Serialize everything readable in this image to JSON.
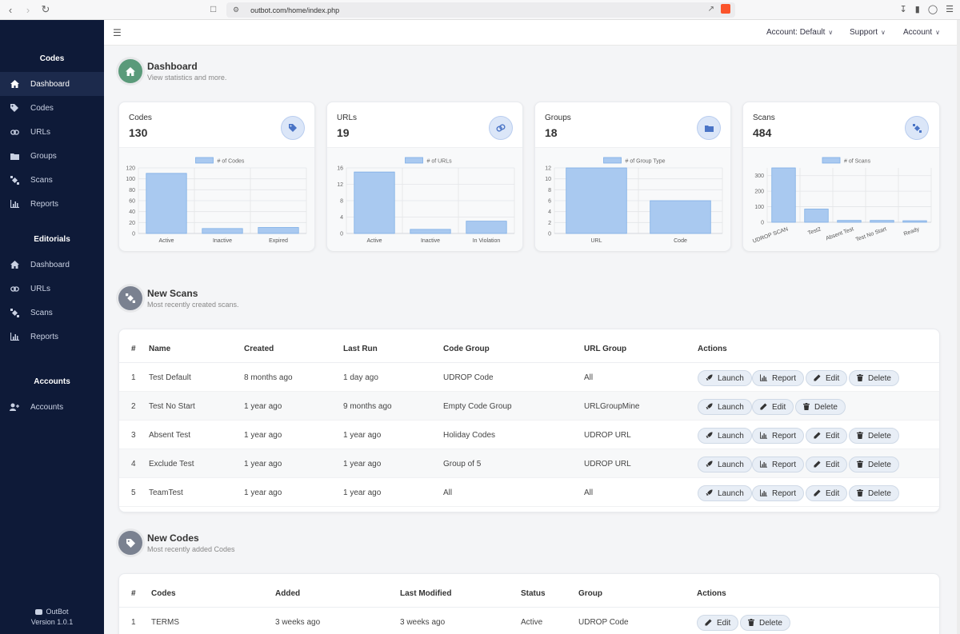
{
  "browser": {
    "url": "outbot.com/home/index.php"
  },
  "sidebar": {
    "sections": [
      {
        "title": "Codes",
        "items": [
          {
            "label": "Dashboard",
            "icon": "home-icon",
            "active": true
          },
          {
            "label": "Codes",
            "icon": "tag-icon"
          },
          {
            "label": "URLs",
            "icon": "link-icon"
          },
          {
            "label": "Groups",
            "icon": "folder-icon"
          },
          {
            "label": "Scans",
            "icon": "satellite-icon"
          },
          {
            "label": "Reports",
            "icon": "chart-icon"
          }
        ]
      },
      {
        "title": "Editorials",
        "items": [
          {
            "label": "Dashboard",
            "icon": "home-icon"
          },
          {
            "label": "URLs",
            "icon": "link-icon"
          },
          {
            "label": "Scans",
            "icon": "satellite-icon"
          },
          {
            "label": "Reports",
            "icon": "chart-icon"
          }
        ]
      },
      {
        "title": "Accounts",
        "items": [
          {
            "label": "Accounts",
            "icon": "user-plus-icon"
          }
        ]
      }
    ],
    "footer": {
      "brand": "OutBot",
      "version": "Version 1.0.1"
    }
  },
  "topbar": {
    "account_default": "Account: Default",
    "support": "Support",
    "account": "Account"
  },
  "dashboard": {
    "title": "Dashboard",
    "subtitle": "View statistics and more."
  },
  "cards": [
    {
      "name": "Codes",
      "count": "130",
      "icon": "tag-icon"
    },
    {
      "name": "URLs",
      "count": "19",
      "icon": "link-icon"
    },
    {
      "name": "Groups",
      "count": "18",
      "icon": "folder-icon"
    },
    {
      "name": "Scans",
      "count": "484",
      "icon": "satellite-icon"
    }
  ],
  "chart_data": [
    {
      "type": "bar",
      "legend": "# of Codes",
      "categories": [
        "Active",
        "Inactive",
        "Expired"
      ],
      "values": [
        110,
        9,
        11
      ],
      "ylim": [
        0,
        120
      ],
      "yticks": [
        0,
        20,
        40,
        60,
        80,
        100,
        120
      ]
    },
    {
      "type": "bar",
      "legend": "# of URLs",
      "categories": [
        "Active",
        "Inactive",
        "In Violation"
      ],
      "values": [
        15,
        1,
        3
      ],
      "ylim": [
        0,
        16
      ],
      "yticks": [
        0,
        4,
        8,
        12,
        16
      ]
    },
    {
      "type": "bar",
      "legend": "# of Group Type",
      "categories": [
        "URL",
        "Code"
      ],
      "values": [
        12,
        6
      ],
      "ylim": [
        0,
        12
      ],
      "yticks": [
        0,
        2,
        4,
        6,
        8,
        10,
        12
      ]
    },
    {
      "type": "bar",
      "legend": "# of Scans",
      "categories": [
        "UDROP SCAN",
        "Test2",
        "Absent Test",
        "Test No Start",
        "Ready"
      ],
      "values": [
        350,
        85,
        12,
        12,
        10
      ],
      "ylim": [
        0,
        350
      ],
      "yticks": [
        0,
        100,
        200,
        300
      ],
      "rotated_labels": true
    }
  ],
  "new_scans": {
    "title": "New Scans",
    "subtitle": "Most recently created scans.",
    "headers": [
      "#",
      "Name",
      "Created",
      "Last Run",
      "Code Group",
      "URL Group",
      "Actions"
    ],
    "rows": [
      {
        "num": "1",
        "name": "Test Default",
        "created": "8 months ago",
        "last_run": "1 day ago",
        "code_group": "UDROP Code",
        "url_group": "All",
        "actions": [
          "Launch",
          "Report",
          "Edit",
          "Delete"
        ]
      },
      {
        "num": "2",
        "name": "Test No Start",
        "created": "1 year ago",
        "last_run": "9 months ago",
        "code_group": "Empty Code Group",
        "url_group": "URLGroupMine",
        "actions": [
          "Launch",
          "Edit",
          "Delete"
        ]
      },
      {
        "num": "3",
        "name": "Absent Test",
        "created": "1 year ago",
        "last_run": "1 year ago",
        "code_group": "Holiday Codes",
        "url_group": "UDROP URL",
        "actions": [
          "Launch",
          "Report",
          "Edit",
          "Delete"
        ]
      },
      {
        "num": "4",
        "name": "Exclude Test",
        "created": "1 year ago",
        "last_run": "1 year ago",
        "code_group": "Group of 5",
        "url_group": "UDROP URL",
        "actions": [
          "Launch",
          "Report",
          "Edit",
          "Delete"
        ]
      },
      {
        "num": "5",
        "name": "TeamTest",
        "created": "1 year ago",
        "last_run": "1 year ago",
        "code_group": "All",
        "url_group": "All",
        "actions": [
          "Launch",
          "Report",
          "Edit",
          "Delete"
        ]
      }
    ]
  },
  "new_codes": {
    "title": "New Codes",
    "subtitle": "Most recently added Codes",
    "headers": [
      "#",
      "Codes",
      "Added",
      "Last Modified",
      "Status",
      "Group",
      "Actions"
    ],
    "rows": [
      {
        "num": "1",
        "code": "TERMS",
        "added": "3 weeks ago",
        "modified": "3 weeks ago",
        "status": "Active",
        "group": "UDROP Code",
        "actions": [
          "Edit",
          "Delete"
        ]
      }
    ]
  },
  "colors": {
    "sidebar": "#0e1a38",
    "bar_fill": "#a9c9f0",
    "bar_stroke": "#7eaee6",
    "dashboard_icon": "#5a9a7a",
    "section_icon": "#7a8190"
  }
}
